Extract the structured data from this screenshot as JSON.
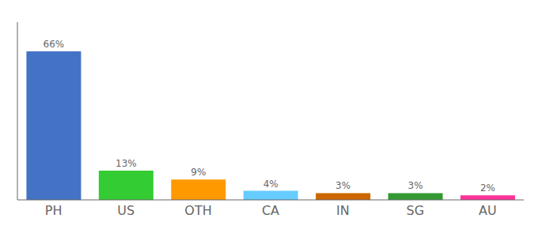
{
  "chart_data": {
    "type": "bar",
    "categories": [
      "PH",
      "US",
      "OTH",
      "CA",
      "IN",
      "SG",
      "AU"
    ],
    "values": [
      66,
      13,
      9,
      4,
      3,
      3,
      2
    ],
    "value_labels": [
      "66%",
      "13%",
      "9%",
      "4%",
      "3%",
      "3%",
      "2%"
    ],
    "data_labels": true,
    "colors": [
      "#4472c4",
      "#33cc33",
      "#ff9900",
      "#66ccff",
      "#cc6600",
      "#339933",
      "#ff3399"
    ],
    "ylim": [
      0,
      79
    ],
    "tick_labels": "x",
    "grid": false
  }
}
